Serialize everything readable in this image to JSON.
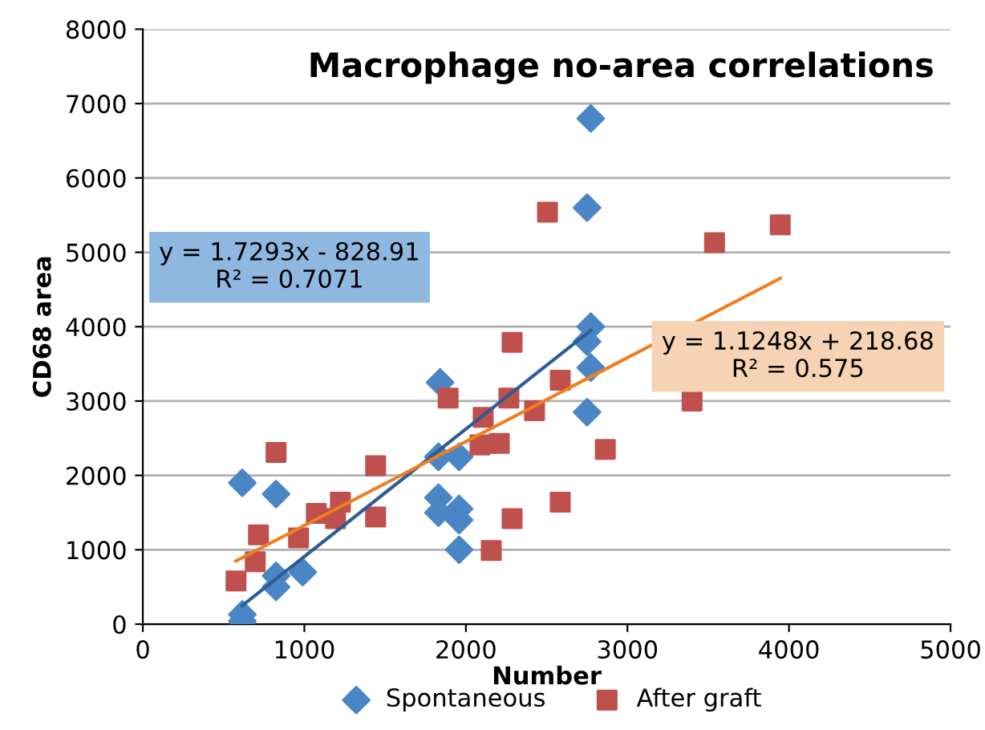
{
  "chart_data": {
    "type": "scatter",
    "title": "Macrophage no-area correlations",
    "xlabel": "Number",
    "ylabel": "CD68 area",
    "annotations": [
      "y = 1.7293x - 828.91\nR² = 0.7071",
      "y = 1.1248x + 218.68\nR² = 0.575"
    ],
    "series": [
      {
        "name": "Spontaneous",
        "color": "#4a86c5",
        "marker": "diamond",
        "x": [
          616,
          616,
          616,
          825,
          825,
          825,
          990,
          1830,
          1958,
          1830,
          1830,
          1958,
          1958,
          1958,
          1840,
          2773,
          2750,
          2773,
          2750,
          2773,
          2750
        ],
        "values": [
          130,
          40,
          1900,
          1750,
          500,
          650,
          700,
          2250,
          2250,
          1700,
          1500,
          1550,
          1400,
          1000,
          3250,
          6800,
          5600,
          4000,
          3800,
          3450,
          2850
        ]
      },
      {
        "name": "After graft",
        "color": "#c0504d",
        "marker": "square",
        "x": [
          577,
          696,
          716,
          825,
          964,
          1074,
          1193,
          1223,
          1441,
          1441,
          1890,
          2107,
          2087,
          2207,
          2266,
          2286,
          2425,
          2584,
          2863,
          2584,
          2286,
          2157,
          3400,
          2505,
          3539,
          3946
        ],
        "values": [
          580,
          840,
          1200,
          2310,
          1160,
          1490,
          1420,
          1640,
          1440,
          2130,
          3040,
          2780,
          2410,
          2430,
          3040,
          3790,
          2870,
          3280,
          2350,
          1640,
          1420,
          990,
          3000,
          5540,
          5130,
          5370
        ]
      },
      {
        "type": "line",
        "color": "#2e5c94",
        "x": [
          616,
          2773
        ],
        "values": [
          250,
          3950
        ]
      },
      {
        "type": "line",
        "color": "#f07d1e",
        "x": [
          577,
          3946
        ],
        "values": [
          850,
          4650
        ]
      }
    ],
    "xlim": [
      0,
      5000
    ],
    "ylim": [
      0,
      8000
    ],
    "xticks": [
      0,
      1000,
      2000,
      3000,
      4000,
      5000
    ],
    "yticks": [
      0,
      1000,
      2000,
      3000,
      4000,
      5000,
      6000,
      7000,
      8000
    ],
    "grid": "y",
    "legend": "bottom"
  }
}
